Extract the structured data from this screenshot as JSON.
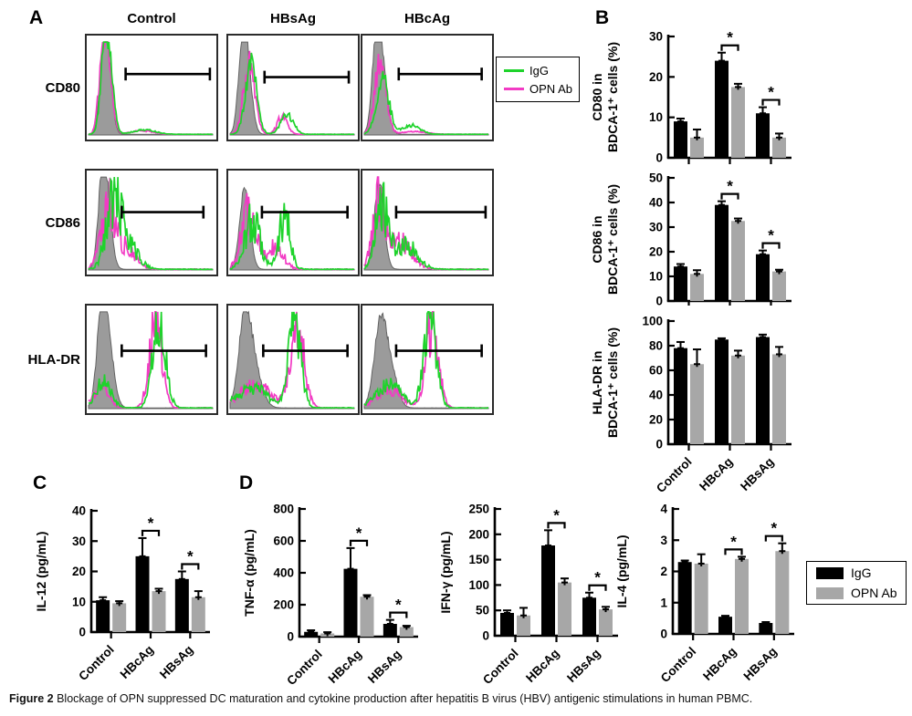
{
  "figure": {
    "panel_a_label": "A",
    "panel_b_label": "B",
    "panel_c_label": "C",
    "panel_d_label": "D",
    "caption_bold": "Figure 2",
    "caption_text": " Blockage of OPN suppressed DC maturation and cytokine production after hepatitis B virus (HBV) antigenic stimulations in human PBMC."
  },
  "colors": {
    "igg_green": "#1ed32b",
    "opn_magenta": "#f23bc4",
    "bar_black": "#000000",
    "bar_gray": "#a7a7a7",
    "hist_gray_fill": "#9b9b9b",
    "hist_gray_stroke": "#636363"
  },
  "flow": {
    "col_headers": [
      "Control",
      "HBsAg",
      "HBcAg"
    ],
    "row_labels": [
      "CD80",
      "CD86",
      "HLA-DR"
    ],
    "legend": [
      {
        "label": "IgG",
        "color_key": "igg_green"
      },
      {
        "label": "OPN Ab",
        "color_key": "opn_magenta"
      }
    ],
    "cells": [
      {
        "name": "cd80-control",
        "gray": [
          [
            0.15,
            0.92,
            0.035
          ],
          [
            0.11,
            0.45,
            0.03
          ]
        ],
        "green": [
          [
            0.155,
            0.97,
            0.038
          ],
          [
            0.12,
            0.4,
            0.03
          ],
          [
            0.45,
            0.05,
            0.09
          ]
        ],
        "magenta": [
          [
            0.145,
            0.9,
            0.04
          ],
          [
            0.11,
            0.42,
            0.03
          ],
          [
            0.43,
            0.04,
            0.09
          ]
        ],
        "line_noise": 0.18,
        "gate": [
          0.3,
          0.95,
          0.37
        ],
        "seed": 11
      },
      {
        "name": "cd80-hbsag",
        "gray": [
          [
            0.13,
            0.95,
            0.04
          ],
          [
            0.09,
            0.5,
            0.03
          ]
        ],
        "green": [
          [
            0.17,
            0.78,
            0.045
          ],
          [
            0.46,
            0.22,
            0.05
          ]
        ],
        "magenta": [
          [
            0.155,
            0.84,
            0.045
          ],
          [
            0.42,
            0.2,
            0.04
          ]
        ],
        "line_noise": 0.2,
        "gate": [
          0.28,
          0.93,
          0.4
        ],
        "seed": 22
      },
      {
        "name": "cd80-hbcag",
        "gray": [
          [
            0.13,
            0.95,
            0.045
          ],
          [
            0.09,
            0.5,
            0.03
          ]
        ],
        "green": [
          [
            0.15,
            0.6,
            0.05
          ],
          [
            0.38,
            0.1,
            0.07
          ]
        ],
        "magenta": [
          [
            0.13,
            0.82,
            0.045
          ],
          [
            0.4,
            0.03,
            0.1
          ]
        ],
        "line_noise": 0.2,
        "gate": [
          0.28,
          0.92,
          0.37
        ],
        "seed": 33
      },
      {
        "name": "cd86-control",
        "gray": [
          [
            0.14,
            0.92,
            0.04
          ],
          [
            0.1,
            0.5,
            0.03
          ]
        ],
        "green": [
          [
            0.2,
            0.72,
            0.06
          ],
          [
            0.32,
            0.25,
            0.08
          ]
        ],
        "magenta": [
          [
            0.16,
            0.68,
            0.06
          ],
          [
            0.3,
            0.2,
            0.08
          ]
        ],
        "line_noise": 0.45,
        "gate": [
          0.27,
          0.9,
          0.4
        ],
        "seed": 44
      },
      {
        "name": "cd86-hbsag",
        "gray": [
          [
            0.12,
            0.95,
            0.04
          ]
        ],
        "green": [
          [
            0.18,
            0.55,
            0.06
          ],
          [
            0.44,
            0.6,
            0.045
          ]
        ],
        "magenta": [
          [
            0.15,
            0.62,
            0.06
          ],
          [
            0.37,
            0.28,
            0.06
          ]
        ],
        "line_noise": 0.45,
        "gate": [
          0.26,
          0.92,
          0.4
        ],
        "seed": 55
      },
      {
        "name": "cd86-hbcag",
        "gray": [
          [
            0.12,
            0.95,
            0.04
          ]
        ],
        "green": [
          [
            0.14,
            0.68,
            0.05
          ],
          [
            0.33,
            0.28,
            0.09
          ]
        ],
        "magenta": [
          [
            0.12,
            0.75,
            0.05
          ],
          [
            0.3,
            0.3,
            0.09
          ]
        ],
        "line_noise": 0.45,
        "gate": [
          0.26,
          0.95,
          0.4
        ],
        "seed": 66
      },
      {
        "name": "hladr-control",
        "gray": [
          [
            0.14,
            0.95,
            0.05
          ],
          [
            0.1,
            0.5,
            0.035
          ]
        ],
        "green": [
          [
            0.12,
            0.28,
            0.06
          ],
          [
            0.57,
            0.97,
            0.05
          ]
        ],
        "magenta": [
          [
            0.1,
            0.22,
            0.06
          ],
          [
            0.54,
            0.9,
            0.05
          ]
        ],
        "line_noise": 0.35,
        "gate": [
          0.27,
          0.92,
          0.42
        ],
        "seed": 77
      },
      {
        "name": "hladr-hbsag",
        "gray": [
          [
            0.12,
            0.95,
            0.05
          ],
          [
            0.2,
            0.35,
            0.06
          ]
        ],
        "green": [
          [
            0.18,
            0.22,
            0.12
          ],
          [
            0.52,
            0.97,
            0.05
          ]
        ],
        "magenta": [
          [
            0.2,
            0.25,
            0.12
          ],
          [
            0.54,
            0.88,
            0.055
          ]
        ],
        "line_noise": 0.35,
        "gate": [
          0.27,
          0.92,
          0.42
        ],
        "seed": 88
      },
      {
        "name": "hladr-hbcag",
        "gray": [
          [
            0.13,
            0.92,
            0.05
          ],
          [
            0.22,
            0.35,
            0.05
          ]
        ],
        "green": [
          [
            0.2,
            0.25,
            0.1
          ],
          [
            0.53,
            0.97,
            0.05
          ]
        ],
        "magenta": [
          [
            0.2,
            0.2,
            0.1
          ],
          [
            0.55,
            0.9,
            0.05
          ]
        ],
        "line_noise": 0.35,
        "gate": [
          0.26,
          0.92,
          0.42
        ],
        "seed": 99
      }
    ]
  },
  "bar_legend": [
    {
      "label": "IgG",
      "color_key": "bar_black"
    },
    {
      "label": "OPN Ab",
      "color_key": "bar_gray"
    }
  ],
  "chart_data": [
    {
      "id": "cd80",
      "type": "bar",
      "ylabel_lines": [
        "CD80 in",
        "BDCA-1⁺ cells (%)"
      ],
      "ylim": [
        0,
        30
      ],
      "yticks": [
        0,
        10,
        20,
        30
      ],
      "categories": [
        "Control",
        "HBcAg",
        "HBsAg"
      ],
      "series": [
        {
          "name": "IgG",
          "color_key": "bar_black",
          "values": [
            9,
            24,
            11
          ],
          "errors": [
            0.7,
            2,
            1.5
          ]
        },
        {
          "name": "OPN Ab",
          "color_key": "bar_gray",
          "values": [
            5,
            17.5,
            5
          ],
          "errors": [
            2,
            0.8,
            1
          ]
        }
      ],
      "sig_groups": [
        1,
        2
      ],
      "show_xlabels": false
    },
    {
      "id": "cd86",
      "type": "bar",
      "ylabel_lines": [
        "CD86 in",
        "BDCA-1⁺ cells (%)"
      ],
      "ylim": [
        0,
        50
      ],
      "yticks": [
        0,
        10,
        20,
        30,
        40,
        50
      ],
      "categories": [
        "Control",
        "HBcAg",
        "HBsAg"
      ],
      "series": [
        {
          "name": "IgG",
          "color_key": "bar_black",
          "values": [
            14,
            39,
            19
          ],
          "errors": [
            1,
            1.5,
            1.5
          ]
        },
        {
          "name": "OPN Ab",
          "color_key": "bar_gray",
          "values": [
            11,
            32.5,
            12
          ],
          "errors": [
            1.5,
            1,
            0.7
          ]
        }
      ],
      "sig_groups": [
        1,
        2
      ],
      "show_xlabels": false
    },
    {
      "id": "hladr",
      "type": "bar",
      "ylabel_lines": [
        "HLA-DR in",
        "BDCA-1⁺ cells (%)"
      ],
      "ylim": [
        0,
        100
      ],
      "yticks": [
        0,
        20,
        40,
        60,
        80,
        100
      ],
      "categories": [
        "Control",
        "HBcAg",
        "HBsAg"
      ],
      "series": [
        {
          "name": "IgG",
          "color_key": "bar_black",
          "values": [
            78,
            85,
            87
          ],
          "errors": [
            5,
            1,
            2
          ]
        },
        {
          "name": "OPN Ab",
          "color_key": "bar_gray",
          "values": [
            65,
            72,
            73
          ],
          "errors": [
            12,
            4,
            6
          ]
        }
      ],
      "sig_groups": [],
      "show_xlabels": true
    },
    {
      "id": "il12",
      "type": "bar",
      "ylabel_lines": [
        "IL-12 (pg/mL)"
      ],
      "ylim": [
        0,
        40
      ],
      "yticks": [
        0,
        10,
        20,
        30,
        40
      ],
      "categories": [
        "Control",
        "HBcAg",
        "HBsAg"
      ],
      "series": [
        {
          "name": "IgG",
          "color_key": "bar_black",
          "values": [
            10.5,
            25,
            17.5
          ],
          "errors": [
            1,
            6,
            2.5
          ]
        },
        {
          "name": "OPN Ab",
          "color_key": "bar_gray",
          "values": [
            9.5,
            13.5,
            11.5
          ],
          "errors": [
            0.7,
            0.8,
            2
          ]
        }
      ],
      "sig_groups": [
        1,
        2
      ],
      "show_xlabels": true
    },
    {
      "id": "tnf",
      "type": "bar",
      "ylabel_lines": [
        "TNF-α (pg/mL)"
      ],
      "ylim": [
        0,
        800
      ],
      "yticks": [
        0,
        200,
        400,
        600,
        800
      ],
      "categories": [
        "Control",
        "HBcAg",
        "HBsAg"
      ],
      "series": [
        {
          "name": "IgG",
          "color_key": "bar_black",
          "values": [
            30,
            425,
            80
          ],
          "errors": [
            10,
            130,
            25
          ]
        },
        {
          "name": "OPN Ab",
          "color_key": "bar_gray",
          "values": [
            20,
            250,
            60
          ],
          "errors": [
            8,
            10,
            8
          ]
        }
      ],
      "sig_groups": [
        1,
        2
      ],
      "show_xlabels": true
    },
    {
      "id": "ifn",
      "type": "bar",
      "ylabel_lines": [
        "IFN-γ (pg/mL)"
      ],
      "ylim": [
        0,
        250
      ],
      "yticks": [
        0,
        50,
        100,
        150,
        200,
        250
      ],
      "categories": [
        "Control",
        "HBcAg",
        "HBsAg"
      ],
      "series": [
        {
          "name": "IgG",
          "color_key": "bar_black",
          "values": [
            45,
            178,
            75
          ],
          "errors": [
            5,
            30,
            10
          ]
        },
        {
          "name": "OPN Ab",
          "color_key": "bar_gray",
          "values": [
            40,
            105,
            52
          ],
          "errors": [
            15,
            8,
            5
          ]
        }
      ],
      "sig_groups": [
        1,
        2
      ],
      "show_xlabels": true
    },
    {
      "id": "il4",
      "type": "bar",
      "ylabel_lines": [
        "IL-4 (pg/mL)"
      ],
      "ylim": [
        0,
        4
      ],
      "yticks": [
        0,
        1,
        2,
        3,
        4
      ],
      "categories": [
        "Control",
        "HBcAg",
        "HBsAg"
      ],
      "series": [
        {
          "name": "IgG",
          "color_key": "bar_black",
          "values": [
            2.3,
            0.55,
            0.35
          ],
          "errors": [
            0.05,
            0.03,
            0.03
          ]
        },
        {
          "name": "OPN Ab",
          "color_key": "bar_gray",
          "values": [
            2.25,
            2.4,
            2.65
          ],
          "errors": [
            0.3,
            0.07,
            0.25
          ]
        }
      ],
      "sig_groups": [
        1,
        2
      ],
      "show_xlabels": true
    }
  ]
}
